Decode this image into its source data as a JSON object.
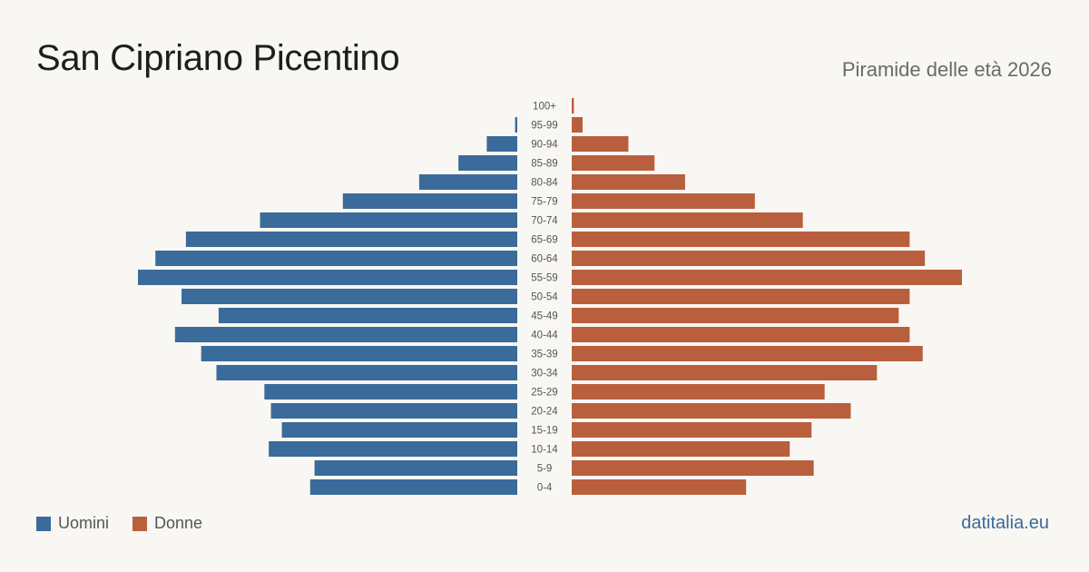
{
  "title": "San Cipriano Picentino",
  "subtitle": "Piramide delle età 2026",
  "brand": "datitalia.eu",
  "colors": {
    "men": "#3a6b9a",
    "women": "#b95f3d"
  },
  "chart_data": {
    "type": "bar",
    "orientation": "horizontal-pyramid",
    "categories": [
      "100+",
      "95-99",
      "90-94",
      "85-89",
      "80-84",
      "75-79",
      "70-74",
      "65-69",
      "60-64",
      "55-59",
      "50-54",
      "45-49",
      "40-44",
      "35-39",
      "30-34",
      "25-29",
      "20-24",
      "15-19",
      "10-14",
      "5-9",
      "0-4"
    ],
    "series": [
      {
        "name": "Uomini",
        "values": [
          0,
          1,
          14,
          27,
          45,
          80,
          118,
          152,
          166,
          174,
          154,
          137,
          157,
          145,
          138,
          116,
          113,
          108,
          114,
          93,
          95
        ]
      },
      {
        "name": "Donne",
        "values": [
          1,
          5,
          26,
          38,
          52,
          84,
          106,
          155,
          162,
          179,
          155,
          150,
          155,
          161,
          140,
          116,
          128,
          110,
          100,
          111,
          80
        ]
      }
    ],
    "legend": "bottom-left",
    "grid": false
  }
}
